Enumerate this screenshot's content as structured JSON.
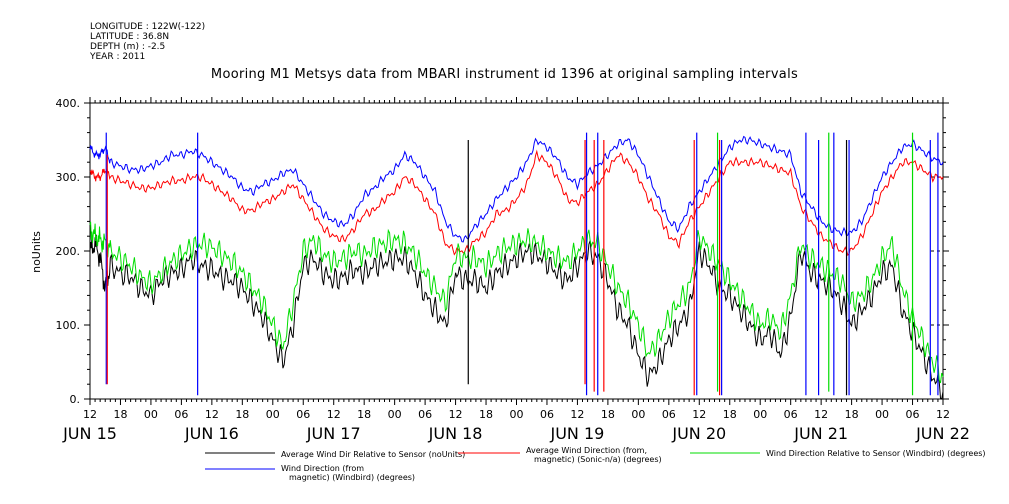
{
  "meta": {
    "longitude": "LONGITUDE : 122W(-122)",
    "latitude": "LATITUDE : 36.8N",
    "depth": "DEPTH (m) : -2.5",
    "year": "YEAR : 2011"
  },
  "chart_data": {
    "type": "line",
    "title": "Mooring M1 Metsys data from MBARI instrument id 1396 at original sampling intervals",
    "ylabel": "noUnits",
    "xlabel": "",
    "ylim": [
      0,
      400
    ],
    "yticks": [
      0,
      100,
      200,
      300,
      400
    ],
    "ytick_labels": [
      "0.",
      "100.",
      "200.",
      "300.",
      "400."
    ],
    "xlim_hours": [
      0,
      168
    ],
    "hour_tick_labels": [
      "12",
      "18",
      "00",
      "06",
      "12",
      "18",
      "00",
      "06",
      "12",
      "18",
      "00",
      "06",
      "12",
      "18",
      "00",
      "06",
      "12",
      "18",
      "00",
      "06",
      "12",
      "18",
      "00",
      "06",
      "12",
      "18",
      "00",
      "06",
      "12"
    ],
    "day_labels": [
      "JUN 15",
      "JUN 16",
      "JUN 17",
      "JUN 18",
      "JUN 19",
      "JUN 20",
      "JUN 21",
      "JUN 22"
    ],
    "legend_placement": "bottom",
    "series": [
      {
        "name": "Average Wind Dir Relative to Sensor (noUnits)",
        "color": "#000000",
        "x": [
          0,
          1,
          2,
          3,
          4,
          6,
          8,
          10,
          12,
          14,
          16,
          18,
          20,
          22,
          24,
          26,
          28,
          30,
          32,
          34,
          36,
          38,
          40,
          42,
          44,
          46,
          48,
          50,
          52,
          54,
          56,
          58,
          60,
          62,
          64,
          66,
          68,
          70,
          72,
          74,
          76,
          78,
          80,
          82,
          84,
          86,
          88,
          90,
          92,
          94,
          96,
          98,
          100,
          102,
          104,
          106,
          108,
          110,
          112,
          114,
          116,
          118,
          120,
          122,
          124,
          126,
          128,
          130,
          132,
          134,
          136,
          138,
          140,
          142,
          144,
          146,
          148,
          150,
          152,
          154,
          156,
          158,
          160,
          162,
          164,
          166,
          168
        ],
        "y": [
          200,
          210,
          190,
          150,
          180,
          170,
          165,
          150,
          140,
          160,
          170,
          175,
          190,
          180,
          175,
          165,
          160,
          150,
          130,
          110,
          80,
          50,
          100,
          180,
          190,
          170,
          160,
          165,
          175,
          170,
          180,
          185,
          190,
          190,
          170,
          140,
          120,
          100,
          170,
          160,
          160,
          150,
          170,
          180,
          190,
          200,
          195,
          185,
          170,
          160,
          180,
          200,
          190,
          160,
          120,
          100,
          60,
          30,
          50,
          80,
          100,
          120,
          200,
          180,
          150,
          140,
          120,
          100,
          80,
          90,
          60,
          110,
          200,
          170,
          160,
          150,
          130,
          100,
          120,
          140,
          170,
          180,
          120,
          90,
          60,
          30,
          10
        ]
      },
      {
        "name": "Average Wind Direction (from, magnetic) (Sonic-n/a) (degrees)",
        "color": "#ff0000",
        "x": [
          0,
          1,
          2,
          3,
          4,
          6,
          8,
          10,
          12,
          14,
          16,
          18,
          20,
          22,
          24,
          26,
          28,
          30,
          32,
          34,
          36,
          38,
          40,
          42,
          44,
          46,
          48,
          50,
          52,
          54,
          56,
          58,
          60,
          62,
          64,
          66,
          68,
          70,
          72,
          74,
          76,
          78,
          80,
          82,
          84,
          86,
          88,
          90,
          92,
          94,
          96,
          98,
          100,
          102,
          104,
          106,
          108,
          110,
          112,
          114,
          116,
          118,
          120,
          122,
          124,
          126,
          128,
          130,
          132,
          134,
          136,
          138,
          140,
          142,
          144,
          146,
          148,
          150,
          152,
          154,
          156,
          158,
          160,
          162,
          164,
          166,
          168
        ],
        "y": [
          310,
          300,
          300,
          310,
          300,
          295,
          290,
          285,
          285,
          290,
          295,
          295,
          300,
          300,
          290,
          280,
          270,
          255,
          255,
          265,
          270,
          280,
          290,
          270,
          250,
          230,
          220,
          215,
          230,
          250,
          255,
          270,
          280,
          300,
          290,
          270,
          250,
          210,
          200,
          200,
          215,
          225,
          250,
          255,
          270,
          290,
          330,
          320,
          300,
          270,
          265,
          280,
          290,
          310,
          330,
          320,
          300,
          270,
          250,
          220,
          210,
          240,
          260,
          280,
          300,
          320,
          320,
          320,
          320,
          315,
          310,
          305,
          260,
          240,
          220,
          210,
          200,
          200,
          220,
          250,
          280,
          300,
          320,
          320,
          310,
          300,
          300
        ]
      },
      {
        "name": "Wind Direction Relative to Sensor (Windbird) (degrees)",
        "color": "#00dd00",
        "x": [
          0,
          1,
          2,
          3,
          4,
          6,
          8,
          10,
          12,
          14,
          16,
          18,
          20,
          22,
          24,
          26,
          28,
          30,
          32,
          34,
          36,
          38,
          40,
          42,
          44,
          46,
          48,
          50,
          52,
          54,
          56,
          58,
          60,
          62,
          64,
          66,
          68,
          70,
          72,
          74,
          76,
          78,
          80,
          82,
          84,
          86,
          88,
          90,
          92,
          94,
          96,
          98,
          100,
          102,
          104,
          106,
          108,
          110,
          112,
          114,
          116,
          118,
          120,
          122,
          124,
          126,
          128,
          130,
          132,
          134,
          136,
          138,
          140,
          142,
          144,
          146,
          148,
          150,
          152,
          154,
          156,
          158,
          160,
          162,
          164,
          166,
          168
        ],
        "y": [
          230,
          220,
          215,
          210,
          200,
          190,
          180,
          165,
          155,
          170,
          185,
          195,
          205,
          210,
          205,
          195,
          185,
          170,
          150,
          130,
          100,
          70,
          130,
          200,
          215,
          195,
          185,
          190,
          200,
          195,
          205,
          210,
          215,
          210,
          195,
          170,
          150,
          130,
          195,
          190,
          190,
          180,
          195,
          205,
          210,
          215,
          210,
          200,
          190,
          185,
          200,
          215,
          210,
          180,
          150,
          130,
          100,
          60,
          80,
          110,
          130,
          150,
          220,
          200,
          180,
          160,
          140,
          120,
          100,
          110,
          90,
          140,
          210,
          190,
          180,
          170,
          160,
          130,
          140,
          160,
          190,
          210,
          150,
          110,
          80,
          50,
          30
        ]
      },
      {
        "name": "Wind Direction (from, magnetic) (Windbird) (degrees)",
        "color": "#0000ff",
        "x": [
          0,
          1,
          2,
          3,
          4,
          6,
          8,
          10,
          12,
          14,
          16,
          18,
          20,
          22,
          24,
          26,
          28,
          30,
          32,
          34,
          36,
          38,
          40,
          42,
          44,
          46,
          48,
          50,
          52,
          54,
          56,
          58,
          60,
          62,
          64,
          66,
          68,
          70,
          72,
          74,
          76,
          78,
          80,
          82,
          84,
          86,
          88,
          90,
          92,
          94,
          96,
          98,
          100,
          102,
          104,
          106,
          108,
          110,
          112,
          114,
          116,
          118,
          120,
          122,
          124,
          126,
          128,
          130,
          132,
          134,
          136,
          138,
          140,
          142,
          144,
          146,
          148,
          150,
          152,
          154,
          156,
          158,
          160,
          162,
          164,
          166,
          168
        ],
        "y": [
          340,
          330,
          330,
          340,
          320,
          315,
          310,
          310,
          315,
          320,
          330,
          330,
          335,
          330,
          320,
          310,
          300,
          285,
          280,
          290,
          295,
          305,
          310,
          290,
          270,
          250,
          240,
          235,
          250,
          275,
          285,
          300,
          310,
          330,
          320,
          300,
          280,
          240,
          220,
          215,
          235,
          250,
          270,
          285,
          300,
          320,
          350,
          340,
          325,
          300,
          290,
          305,
          315,
          330,
          345,
          350,
          330,
          300,
          270,
          240,
          230,
          260,
          280,
          300,
          320,
          340,
          350,
          350,
          345,
          340,
          335,
          330,
          280,
          260,
          240,
          230,
          225,
          225,
          240,
          270,
          300,
          320,
          340,
          345,
          335,
          325,
          320
        ]
      }
    ],
    "spikes": [
      {
        "series": 3,
        "x": 3.2,
        "from": 20,
        "to": 360
      },
      {
        "series": 1,
        "x": 3.4,
        "from": 20,
        "to": 330
      },
      {
        "series": 3,
        "x": 21.2,
        "from": 5,
        "to": 360
      },
      {
        "series": 1,
        "x": 97.5,
        "from": 20,
        "to": 350
      },
      {
        "series": 3,
        "x": 97.8,
        "from": 5,
        "to": 360
      },
      {
        "series": 1,
        "x": 99.3,
        "from": 10,
        "to": 350
      },
      {
        "series": 3,
        "x": 100.0,
        "from": 5,
        "to": 360
      },
      {
        "series": 1,
        "x": 101.2,
        "from": 10,
        "to": 350
      },
      {
        "series": 0,
        "x": 74.5,
        "from": 20,
        "to": 350
      },
      {
        "series": 1,
        "x": 119.0,
        "from": 5,
        "to": 350
      },
      {
        "series": 3,
        "x": 119.5,
        "from": 5,
        "to": 360
      },
      {
        "series": 1,
        "x": 124.0,
        "from": 5,
        "to": 350
      },
      {
        "series": 3,
        "x": 124.4,
        "from": 5,
        "to": 350
      },
      {
        "series": 2,
        "x": 123.6,
        "from": 10,
        "to": 360
      },
      {
        "series": 3,
        "x": 141.0,
        "from": 5,
        "to": 360
      },
      {
        "series": 3,
        "x": 143.5,
        "from": 5,
        "to": 350
      },
      {
        "series": 2,
        "x": 145.5,
        "from": 10,
        "to": 360
      },
      {
        "series": 3,
        "x": 146.5,
        "from": 5,
        "to": 360
      },
      {
        "series": 0,
        "x": 149.0,
        "from": 5,
        "to": 350
      },
      {
        "series": 3,
        "x": 149.5,
        "from": 5,
        "to": 350
      },
      {
        "series": 2,
        "x": 162.0,
        "from": 5,
        "to": 360
      },
      {
        "series": 3,
        "x": 165.5,
        "from": 5,
        "to": 350
      },
      {
        "series": 3,
        "x": 167.0,
        "from": 5,
        "to": 360
      }
    ]
  }
}
